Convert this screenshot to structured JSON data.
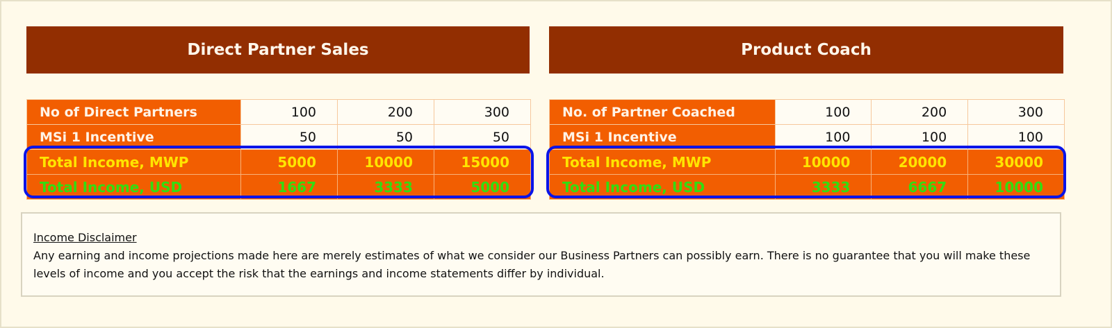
{
  "left": {
    "title": "Direct Partner Sales",
    "rows": [
      {
        "label": "No of Direct Partners",
        "values": [
          "100",
          "200",
          "300"
        ]
      },
      {
        "label": "MSi 1 Incentive",
        "values": [
          "50",
          "50",
          "50"
        ]
      },
      {
        "label": "Total Income, MWP",
        "values": [
          "5000",
          "10000",
          "15000"
        ]
      },
      {
        "label": "Total Income, USD",
        "values": [
          "1667",
          "3333",
          "5000"
        ]
      }
    ]
  },
  "right": {
    "title": "Product Coach",
    "rows": [
      {
        "label": "No. of Partner Coached",
        "values": [
          "100",
          "200",
          "300"
        ]
      },
      {
        "label": "MSi 1 Incentive",
        "values": [
          "100",
          "100",
          "100"
        ]
      },
      {
        "label": "Total Income, MWP",
        "values": [
          "10000",
          "20000",
          "30000"
        ]
      },
      {
        "label": "Total Income, USD",
        "values": [
          "3333",
          "6667",
          "10000"
        ]
      }
    ]
  },
  "disclaimer": {
    "title": "Income Disclaimer",
    "text": "Any earning and income projections made here are merely estimates of what we  consider our Business Partners can possibly earn. There is no guarantee that you will make these  levels of income and you accept the  risk that the earnings and income statements  differ by individual."
  },
  "colors": {
    "header_bg": "#922e01",
    "label_bg": "#f25e01",
    "mwp_text": "#ffe500",
    "usd_text": "#33dd11",
    "highlight_border": "#0a14e8"
  }
}
